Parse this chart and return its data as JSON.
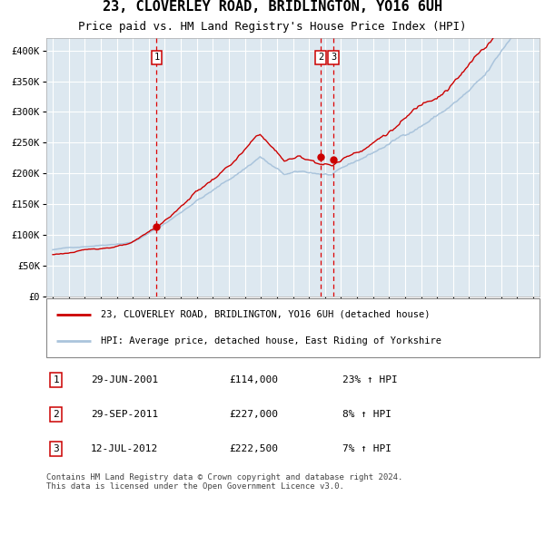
{
  "title": "23, CLOVERLEY ROAD, BRIDLINGTON, YO16 6UH",
  "subtitle": "Price paid vs. HM Land Registry's House Price Index (HPI)",
  "legend_label_red": "23, CLOVERLEY ROAD, BRIDLINGTON, YO16 6UH (detached house)",
  "legend_label_blue": "HPI: Average price, detached house, East Riding of Yorkshire",
  "footer_line1": "Contains HM Land Registry data © Crown copyright and database right 2024.",
  "footer_line2": "This data is licensed under the Open Government Licence v3.0.",
  "transactions": [
    {
      "num": 1,
      "date": "29-JUN-2001",
      "price": 114000,
      "pct": "23%",
      "dir": "↑"
    },
    {
      "num": 2,
      "date": "29-SEP-2011",
      "price": 227000,
      "pct": "8%",
      "dir": "↑"
    },
    {
      "num": 3,
      "date": "12-JUL-2012",
      "price": 222500,
      "pct": "7%",
      "dir": "↑"
    }
  ],
  "vline_dates": [
    2001.49,
    2011.74,
    2012.53
  ],
  "dot_dates": [
    2001.49,
    2011.74,
    2012.53
  ],
  "dot_values": [
    114000,
    227000,
    222500
  ],
  "ylim": [
    0,
    420000
  ],
  "xlim_start": 1994.6,
  "xlim_end": 2025.4,
  "yticks": [
    0,
    50000,
    100000,
    150000,
    200000,
    250000,
    300000,
    350000,
    400000
  ],
  "xticks": [
    1995,
    1996,
    1997,
    1998,
    1999,
    2000,
    2001,
    2002,
    2003,
    2004,
    2005,
    2006,
    2007,
    2008,
    2009,
    2010,
    2011,
    2012,
    2013,
    2014,
    2015,
    2016,
    2017,
    2018,
    2019,
    2020,
    2021,
    2022,
    2023,
    2024,
    2025
  ],
  "bg_color": "#dde8f0",
  "red_color": "#cc0000",
  "blue_color": "#aac4dc",
  "grid_color": "#ffffff",
  "vline_color": "#dd0000",
  "tick_fontsize": 7.5,
  "label_fontsize": 8.0
}
